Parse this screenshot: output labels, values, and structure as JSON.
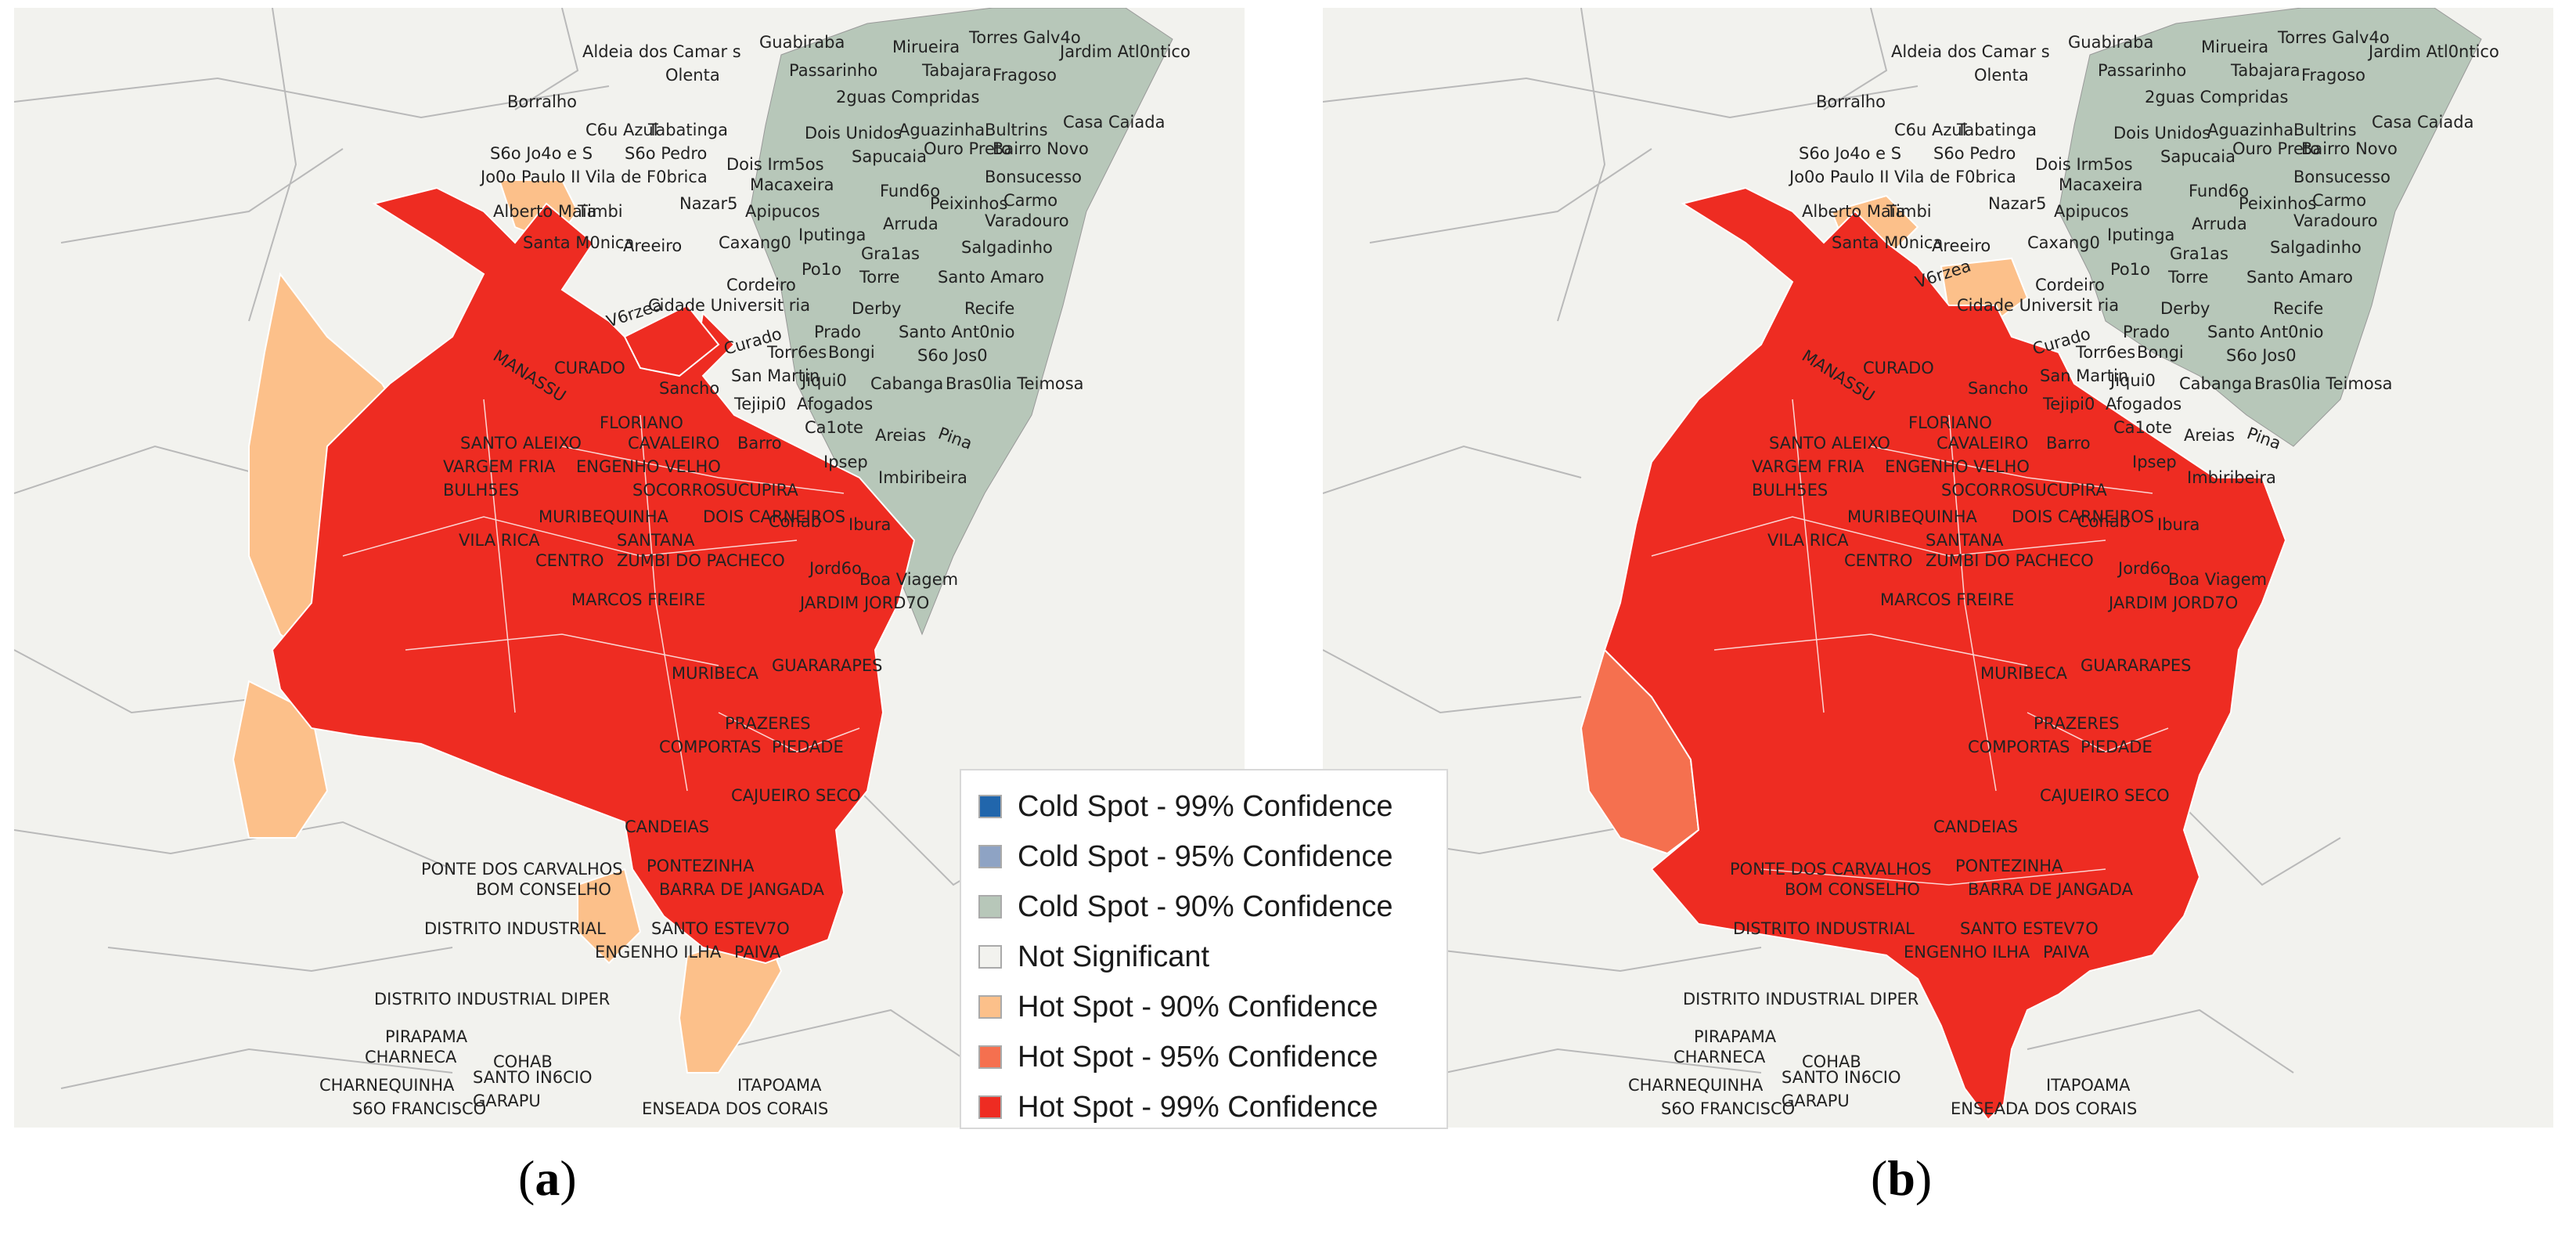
{
  "colors": {
    "cold99": "#2166ac",
    "cold95": "#8ea3c4",
    "cold90": "#b7c7b9",
    "not_significant": "#f2f2ee",
    "hot90": "#fcc08a",
    "hot95": "#f5704f",
    "hot99": "#ee2c22"
  },
  "legend": {
    "items": [
      {
        "label": "Cold Spot - 99% Confidence",
        "color": "#2166ac"
      },
      {
        "label": "Cold Spot - 95% Confidence",
        "color": "#8ea3c4"
      },
      {
        "label": "Cold Spot - 90% Confidence",
        "color": "#b7c7b9"
      },
      {
        "label": "Not Significant",
        "color": "#f2f2ee"
      },
      {
        "label": "Hot Spot - 90% Confidence",
        "color": "#fcc08a"
      },
      {
        "label": "Hot Spot - 95% Confidence",
        "color": "#f5704f"
      },
      {
        "label": "Hot Spot - 99% Confidence",
        "color": "#ee2c22"
      }
    ]
  },
  "captions": {
    "a_open": "(",
    "a_letter": "a",
    "a_close": ")",
    "b_open": "(",
    "b_letter": "b",
    "b_close": ")"
  },
  "place_labels": [
    "Aldeia dos Camar s",
    "Olenta",
    "Guabiraba",
    "Mirueira",
    "Torres Galv4o",
    "Jardim Atl0ntico",
    "Passarinho",
    "Tabajara",
    "Fragoso",
    "2guas Compridas",
    "Borralho",
    "C6u Azul",
    "Tabatinga",
    "Dois Unidos",
    "Aguazinha",
    "Bultrins",
    "Casa Caiada",
    "S6o Jo4o e S",
    "S6o Pedro",
    "Dois Irm5os",
    "Sapucaia",
    "Ouro Preto",
    "Bairro Novo",
    "Jo0o Paulo II",
    "Vila de F0brica",
    "Macaxeira",
    "Fund6o",
    "Bonsucesso",
    "Alberto Maia",
    "Timbi",
    "Nazar5",
    "Apipucos",
    "Peixinhos",
    "Carmo",
    "Santa M0nica",
    "Areeiro",
    "Caxang0",
    "Iputinga",
    "Arruda",
    "Varadouro",
    "Gra1as",
    "Salgadinho",
    "Po1o",
    "Torre",
    "Santo Amaro",
    "Cordeiro",
    "Cidade Universit ria",
    "Derby",
    "Recife",
    "V6rzea",
    "Curado",
    "Prado",
    "Santo Ant0nio",
    "Torr6es",
    "Bongi",
    "S6o Jos0",
    "San Martin",
    "Jiqui0",
    "Cabanga",
    "Bras0lia Teimosa",
    "Sancho",
    "Tejipi0",
    "Afogados",
    "Ca1ote",
    "Areias",
    "Pina",
    "Barro",
    "Ipsep",
    "Imbiribeira",
    "Cohab",
    "Ibura",
    "Jord6o",
    "Boa Viagem",
    "MANASSU",
    "CURADO",
    "FLORIANO",
    "SANTO ALEIXO",
    "CAVALEIRO",
    "VARGEM FRIA",
    "ENGENHO VELHO",
    "BULH5ES",
    "SOCORRO",
    "SUCUPIRA",
    "MURIBEQUINHA",
    "DOIS CARNEIROS",
    "VILA RICA",
    "SANTANA",
    "CENTRO",
    "ZUMBI DO PACHECO",
    "MARCOS FREIRE",
    "JARDIM JORD7O",
    "MURIBECA",
    "GUARARAPES",
    "PRAZERES",
    "COMPORTAS",
    "PIEDADE",
    "CAJUEIRO SECO",
    "CANDEIAS",
    "PONTE DOS CARVALHOS",
    "PONTEZINHA",
    "BOM CONSELHO",
    "BARRA DE JANGADA",
    "DISTRITO INDUSTRIAL",
    "SANTO ESTEV7O",
    "ENGENHO ILHA",
    "PAIVA",
    "DISTRITO INDUSTRIAL DIPER",
    "PIRAPAMA",
    "CHARNECA",
    "COHAB",
    "SANTO IN6CIO",
    "CHARNEQUINHA",
    "GARAPU",
    "S6O FRANCISCO",
    "ITAPOAMA",
    "ENSEADA DOS CORAIS"
  ]
}
